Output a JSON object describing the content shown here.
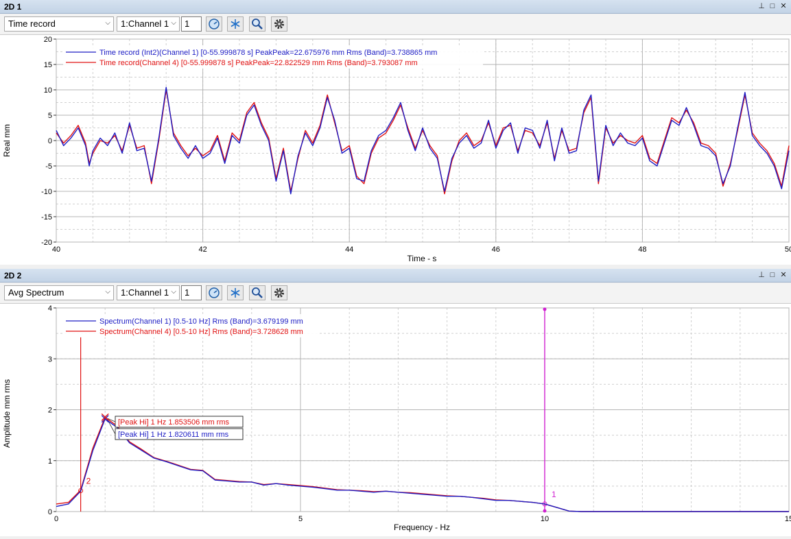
{
  "panel1": {
    "title": "2D 1",
    "view_select": "Time record",
    "channel_select": "1:Channel 1",
    "number_value": "1",
    "legend": [
      {
        "text": "Time record (Int2)(Channel 1) [0-55.999878 s] PeakPeak=22.675976 mm Rms (Band)=3.738865 mm",
        "color": "#1c1cc4"
      },
      {
        "text": "Time record(Channel 4) [0-55.999878 s] PeakPeak=22.822529 mm Rms (Band)=3.793087 mm",
        "color": "#e01010"
      }
    ]
  },
  "panel2": {
    "title": "2D 2",
    "view_select": "Avg Spectrum",
    "channel_select": "1:Channel 1",
    "number_value": "1",
    "legend": [
      {
        "text": "Spectrum(Channel 1) [0.5-10 Hz] Rms (Band)=3.679199 mm",
        "color": "#1c1cc4"
      },
      {
        "text": "Spectrum(Channel 4) [0.5-10 Hz] Rms (Band)=3.728628 mm",
        "color": "#e01010"
      }
    ],
    "annotations": [
      {
        "text": "[Peak Hi] 1 Hz 1.853506 mm rms",
        "color": "#e01010"
      },
      {
        "text": "[Peak Hi] 1 Hz 1.820611 mm rms",
        "color": "#1c1cc4"
      }
    ],
    "cursor_labels": {
      "cursor1": "1",
      "cursor2": "2"
    }
  },
  "toolbar_icons": [
    "dial-icon",
    "snowflake-icon",
    "magnifier-icon",
    "gear-icon"
  ],
  "chart_data": [
    {
      "type": "line",
      "xlabel": "Time - s",
      "ylabel": "Real mm",
      "xlim": [
        40,
        50
      ],
      "ylim": [
        -20,
        20
      ],
      "xticks": [
        "40",
        "42",
        "44",
        "46",
        "48",
        "50"
      ],
      "yticks": [
        "20",
        "15",
        "10",
        "5",
        "0",
        "-5",
        "-10",
        "-15",
        "-20"
      ],
      "grid": true,
      "series": [
        {
          "name": "Time record (Int2)(Channel 1)",
          "color": "#1c1cc4",
          "x": [
            40.0,
            40.1,
            40.2,
            40.3,
            40.4,
            40.45,
            40.5,
            40.6,
            40.7,
            40.8,
            40.9,
            41.0,
            41.1,
            41.2,
            41.3,
            41.4,
            41.5,
            41.6,
            41.7,
            41.8,
            41.9,
            42.0,
            42.1,
            42.2,
            42.3,
            42.4,
            42.5,
            42.6,
            42.7,
            42.8,
            42.9,
            43.0,
            43.1,
            43.2,
            43.3,
            43.4,
            43.5,
            43.6,
            43.7,
            43.8,
            43.9,
            44.0,
            44.1,
            44.2,
            44.3,
            44.4,
            44.5,
            44.6,
            44.7,
            44.8,
            44.9,
            45.0,
            45.1,
            45.2,
            45.3,
            45.4,
            45.5,
            45.6,
            45.7,
            45.8,
            45.9,
            46.0,
            46.1,
            46.2,
            46.3,
            46.4,
            46.5,
            46.6,
            46.7,
            46.8,
            46.9,
            47.0,
            47.1,
            47.2,
            47.3,
            47.4,
            47.5,
            47.6,
            47.7,
            47.8,
            47.9,
            48.0,
            48.1,
            48.2,
            48.3,
            48.4,
            48.5,
            48.6,
            48.7,
            48.8,
            48.9,
            49.0,
            49.1,
            49.2,
            49.3,
            49.4,
            49.5,
            49.6,
            49.7,
            49.8,
            49.9,
            50.0
          ],
          "values": [
            2.0,
            -1.0,
            0.5,
            2.5,
            -1.0,
            -5.0,
            -2.0,
            0.5,
            -1.0,
            1.5,
            -2.5,
            3.5,
            -2.0,
            -1.5,
            -8.0,
            0.5,
            10.5,
            1.0,
            -1.5,
            -3.5,
            -1.0,
            -3.5,
            -2.5,
            0.5,
            -4.5,
            1.0,
            -0.5,
            5.0,
            7.0,
            3.0,
            0.0,
            -8.0,
            -2.0,
            -10.5,
            -3.0,
            1.5,
            -1.0,
            2.5,
            8.5,
            4.0,
            -2.5,
            -1.5,
            -7.5,
            -8.0,
            -2.0,
            1.0,
            2.0,
            4.5,
            7.5,
            2.0,
            -2.0,
            2.5,
            -1.5,
            -3.5,
            -10.0,
            -3.5,
            -0.5,
            1.0,
            -1.5,
            -0.5,
            4.0,
            -1.5,
            2.0,
            3.5,
            -2.5,
            2.5,
            2.0,
            -1.5,
            4.0,
            -4.0,
            2.5,
            -2.5,
            -2.0,
            6.0,
            9.0,
            -8.0,
            3.0,
            -1.0,
            1.5,
            -0.5,
            -1.0,
            0.5,
            -4.0,
            -5.0,
            -0.5,
            4.0,
            3.0,
            6.5,
            3.0,
            -1.0,
            -1.5,
            -3.0,
            -8.5,
            -5.0,
            2.5,
            9.5,
            1.0,
            -1.0,
            -2.5,
            -5.0,
            -9.5,
            -2.0
          ]
        },
        {
          "name": "Time record(Channel 4)",
          "color": "#e01010",
          "x": [
            40.0,
            40.1,
            40.2,
            40.3,
            40.4,
            40.45,
            40.5,
            40.6,
            40.7,
            40.8,
            40.9,
            41.0,
            41.1,
            41.2,
            41.3,
            41.4,
            41.5,
            41.6,
            41.7,
            41.8,
            41.9,
            42.0,
            42.1,
            42.2,
            42.3,
            42.4,
            42.5,
            42.6,
            42.7,
            42.8,
            42.9,
            43.0,
            43.1,
            43.2,
            43.3,
            43.4,
            43.5,
            43.6,
            43.7,
            43.8,
            43.9,
            44.0,
            44.1,
            44.2,
            44.3,
            44.4,
            44.5,
            44.6,
            44.7,
            44.8,
            44.9,
            45.0,
            45.1,
            45.2,
            45.3,
            45.4,
            45.5,
            45.6,
            45.7,
            45.8,
            45.9,
            46.0,
            46.1,
            46.2,
            46.3,
            46.4,
            46.5,
            46.6,
            46.7,
            46.8,
            46.9,
            47.0,
            47.1,
            47.2,
            47.3,
            47.4,
            47.5,
            47.6,
            47.7,
            47.8,
            47.9,
            48.0,
            48.1,
            48.2,
            48.3,
            48.4,
            48.5,
            48.6,
            48.7,
            48.8,
            48.9,
            49.0,
            49.1,
            49.2,
            49.3,
            49.4,
            49.5,
            49.6,
            49.7,
            49.8,
            49.9,
            50.0
          ],
          "values": [
            1.5,
            -0.5,
            1.0,
            3.0,
            -0.5,
            -4.5,
            -2.5,
            0.0,
            -0.5,
            1.0,
            -2.0,
            3.0,
            -1.5,
            -1.0,
            -8.5,
            0.0,
            10.0,
            1.5,
            -1.0,
            -3.0,
            -1.5,
            -3.0,
            -2.0,
            1.0,
            -4.0,
            1.5,
            0.0,
            5.5,
            7.5,
            3.5,
            0.5,
            -7.5,
            -1.5,
            -10.0,
            -3.5,
            2.0,
            -0.5,
            3.0,
            9.0,
            3.5,
            -2.0,
            -1.0,
            -7.0,
            -8.5,
            -2.5,
            0.5,
            1.5,
            4.0,
            7.0,
            2.5,
            -1.5,
            2.0,
            -1.0,
            -3.0,
            -10.5,
            -4.0,
            0.0,
            1.5,
            -1.0,
            0.0,
            3.5,
            -1.0,
            2.5,
            3.0,
            -2.0,
            2.0,
            1.5,
            -1.0,
            3.5,
            -3.5,
            2.0,
            -2.0,
            -1.5,
            5.5,
            8.5,
            -8.5,
            2.5,
            -0.5,
            1.0,
            0.0,
            -0.5,
            1.0,
            -3.5,
            -4.5,
            0.0,
            4.5,
            3.5,
            6.0,
            3.5,
            -0.5,
            -1.0,
            -2.5,
            -9.0,
            -4.5,
            2.0,
            9.0,
            1.5,
            -0.5,
            -2.0,
            -4.5,
            -9.0,
            -1.0
          ]
        }
      ]
    },
    {
      "type": "line",
      "xlabel": "Frequency - Hz",
      "ylabel": "Amplitude mm rms",
      "xlim": [
        0,
        15
      ],
      "ylim": [
        0,
        4
      ],
      "xticks": [
        "0",
        "5",
        "10",
        "15"
      ],
      "yticks": [
        "4",
        "3",
        "2",
        "1",
        "0"
      ],
      "grid": true,
      "cursors": [
        {
          "label": "2",
          "x": 0.5
        },
        {
          "label": "1",
          "x": 10
        }
      ],
      "series": [
        {
          "name": "Spectrum(Channel 1)",
          "color": "#1c1cc4",
          "x": [
            0.0,
            0.25,
            0.5,
            0.75,
            1.0,
            1.25,
            1.5,
            1.75,
            2.0,
            2.25,
            2.5,
            2.75,
            3.0,
            3.25,
            3.5,
            3.75,
            4.0,
            4.25,
            4.5,
            4.75,
            5.0,
            5.25,
            5.5,
            5.75,
            6.0,
            6.25,
            6.5,
            6.75,
            7.0,
            7.25,
            7.5,
            7.75,
            8.0,
            8.25,
            8.5,
            8.75,
            9.0,
            9.25,
            9.5,
            9.75,
            10.0,
            10.25,
            10.5,
            10.75,
            11.0,
            12.0,
            13.0,
            14.0,
            15.0
          ],
          "values": [
            0.1,
            0.15,
            0.4,
            1.2,
            1.82,
            1.65,
            1.35,
            1.2,
            1.05,
            0.98,
            0.9,
            0.82,
            0.8,
            0.62,
            0.6,
            0.58,
            0.58,
            0.52,
            0.55,
            0.52,
            0.5,
            0.48,
            0.45,
            0.42,
            0.42,
            0.4,
            0.38,
            0.4,
            0.38,
            0.36,
            0.34,
            0.32,
            0.3,
            0.3,
            0.28,
            0.25,
            0.22,
            0.22,
            0.2,
            0.18,
            0.15,
            0.08,
            0.01,
            0.0,
            0.0,
            0.0,
            0.0,
            0.0,
            0.0
          ]
        },
        {
          "name": "Spectrum(Channel 4)",
          "color": "#e01010",
          "x": [
            0.0,
            0.25,
            0.5,
            0.75,
            1.0,
            1.25,
            1.5,
            1.75,
            2.0,
            2.25,
            2.5,
            2.75,
            3.0,
            3.25,
            3.5,
            3.75,
            4.0,
            4.25,
            4.5,
            4.75,
            5.0,
            5.25,
            5.5,
            5.75,
            6.0,
            6.25,
            6.5,
            6.75,
            7.0,
            7.25,
            7.5,
            7.75,
            8.0,
            8.25,
            8.5,
            8.75,
            9.0,
            9.25,
            9.5,
            9.75,
            10.0,
            10.25,
            10.5,
            10.75,
            11.0,
            12.0,
            13.0,
            14.0,
            15.0
          ],
          "values": [
            0.15,
            0.18,
            0.42,
            1.25,
            1.85,
            1.68,
            1.37,
            1.22,
            1.06,
            0.99,
            0.91,
            0.83,
            0.81,
            0.63,
            0.61,
            0.59,
            0.58,
            0.53,
            0.55,
            0.53,
            0.51,
            0.49,
            0.46,
            0.43,
            0.42,
            0.41,
            0.39,
            0.4,
            0.38,
            0.37,
            0.35,
            0.33,
            0.31,
            0.3,
            0.28,
            0.26,
            0.23,
            0.22,
            0.2,
            0.18,
            0.15,
            0.08,
            0.01,
            0.0,
            0.0,
            0.0,
            0.0,
            0.0,
            0.0
          ]
        }
      ]
    }
  ]
}
